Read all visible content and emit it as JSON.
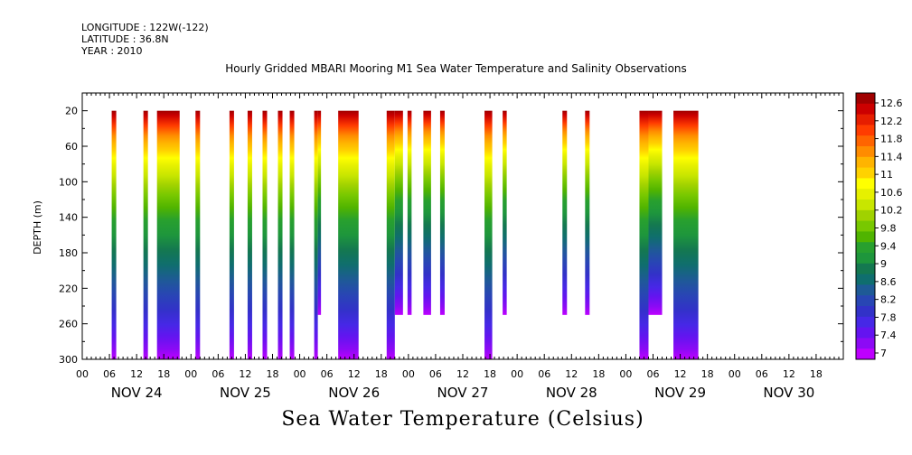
{
  "header": {
    "longitude": "LONGITUDE : 122W(-122)",
    "latitude": "LATITUDE : 36.8N",
    "year": "YEAR : 2010"
  },
  "chart_data": {
    "type": "heatmap",
    "title": "Hourly Gridded MBARI Mooring M1 Sea Water Temperature and Salinity Observations",
    "bottom_label": "Sea Water Temperature (Celsius)",
    "ylabel": "DEPTH (m)",
    "ylim": [
      300,
      0
    ],
    "y_ticks": [
      20,
      60,
      100,
      140,
      180,
      220,
      260,
      300
    ],
    "x_range_hours": [
      0,
      168
    ],
    "hour_ticks": [
      "00",
      "06",
      "12",
      "18",
      "00",
      "06",
      "12",
      "18",
      "00",
      "06",
      "12",
      "18",
      "00",
      "06",
      "12",
      "18",
      "00",
      "06",
      "12",
      "18",
      "00",
      "06",
      "12",
      "18",
      "00",
      "06",
      "12",
      "18"
    ],
    "day_labels": [
      "NOV 24",
      "NOV 25",
      "NOV 26",
      "NOV 27",
      "NOV 28",
      "NOV 29",
      "NOV 30"
    ],
    "colorbar": {
      "labels": [
        "12.6",
        "12.2",
        "11.8",
        "11.4",
        "11",
        "10.6",
        "10.2",
        "9.8",
        "9.4",
        "9",
        "8.6",
        "8.2",
        "7.8",
        "7.4",
        "7"
      ],
      "colors": [
        "#a00000",
        "#cc0000",
        "#e61e00",
        "#ff3c00",
        "#ff6400",
        "#ff8c00",
        "#ffb400",
        "#ffd200",
        "#ffff00",
        "#e6f000",
        "#c8e600",
        "#a0d200",
        "#78c800",
        "#50b400",
        "#28a02e",
        "#1e963c",
        "#147850",
        "#0f6e6e",
        "#1e5a96",
        "#2846b4",
        "#3232c8",
        "#4628e6",
        "#6414f0",
        "#8c0af5",
        "#be00ff"
      ]
    },
    "segments": [
      {
        "start": 6.5,
        "end": 7.5,
        "depth_max": 300
      },
      {
        "start": 13.5,
        "end": 14.5,
        "depth_max": 300
      },
      {
        "start": 16.5,
        "end": 21.5,
        "depth_max": 300
      },
      {
        "start": 25.0,
        "end": 26.0,
        "depth_max": 300
      },
      {
        "start": 32.5,
        "end": 33.5,
        "depth_max": 300
      },
      {
        "start": 36.5,
        "end": 37.5,
        "depth_max": 300
      },
      {
        "start": 39.8,
        "end": 40.8,
        "depth_max": 300
      },
      {
        "start": 43.2,
        "end": 44.2,
        "depth_max": 300
      },
      {
        "start": 45.8,
        "end": 46.8,
        "depth_max": 300
      },
      {
        "start": 51.2,
        "end": 52.0,
        "depth_max": 300
      },
      {
        "start": 52.0,
        "end": 52.7,
        "depth_max": 250
      },
      {
        "start": 56.5,
        "end": 61.0,
        "depth_max": 300
      },
      {
        "start": 67.2,
        "end": 69.0,
        "depth_max": 300
      },
      {
        "start": 69.0,
        "end": 70.8,
        "depth_max": 250
      },
      {
        "start": 71.8,
        "end": 72.7,
        "depth_max": 250
      },
      {
        "start": 75.3,
        "end": 77.0,
        "depth_max": 250
      },
      {
        "start": 79.0,
        "end": 80.0,
        "depth_max": 250
      },
      {
        "start": 88.8,
        "end": 90.5,
        "depth_max": 300
      },
      {
        "start": 92.8,
        "end": 93.7,
        "depth_max": 250
      },
      {
        "start": 106.0,
        "end": 107.0,
        "depth_max": 250
      },
      {
        "start": 111.0,
        "end": 112.0,
        "depth_max": 250
      },
      {
        "start": 123.0,
        "end": 125.0,
        "depth_max": 300
      },
      {
        "start": 125.0,
        "end": 128.0,
        "depth_max": 250
      },
      {
        "start": 130.5,
        "end": 136.0,
        "depth_max": 300
      }
    ]
  }
}
